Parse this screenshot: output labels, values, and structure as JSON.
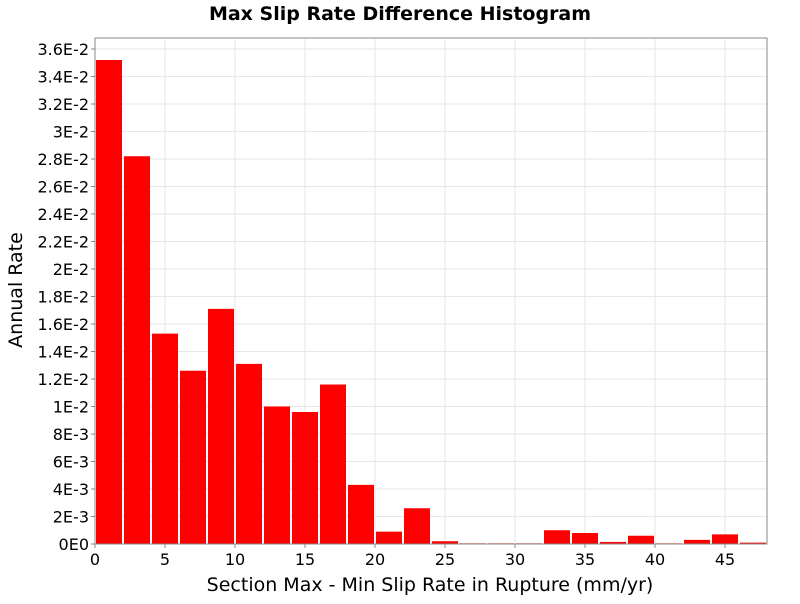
{
  "chart_data": {
    "type": "bar",
    "title": "Max Slip Rate Difference Histogram",
    "xlabel": "Section Max - Min Slip Rate in Rupture (mm/yr)",
    "ylabel": "Annual Rate",
    "xlim": [
      0,
      48
    ],
    "ylim": [
      0,
      0.0368
    ],
    "xticks": [
      0,
      5,
      10,
      15,
      20,
      25,
      30,
      35,
      40,
      45
    ],
    "xtick_labels": [
      "0",
      "5",
      "10",
      "15",
      "20",
      "25",
      "30",
      "35",
      "40",
      "45"
    ],
    "yticks": [
      0,
      0.002,
      0.004,
      0.006,
      0.008,
      0.01,
      0.012,
      0.014,
      0.016,
      0.018,
      0.02,
      0.022,
      0.024,
      0.026,
      0.028,
      0.03,
      0.032,
      0.034,
      0.036
    ],
    "ytick_labels": [
      "0E0",
      "2E-3",
      "4E-3",
      "6E-3",
      "8E-3",
      "1E-2",
      "1.2E-2",
      "1.4E-2",
      "1.6E-2",
      "1.8E-2",
      "2E-2",
      "2.2E-2",
      "2.4E-2",
      "2.6E-2",
      "2.8E-2",
      "3E-2",
      "3.2E-2",
      "3.4E-2",
      "3.6E-2"
    ],
    "bin_width": 2,
    "bin_centers": [
      1,
      3,
      5,
      7,
      9,
      11,
      13,
      15,
      17,
      19,
      21,
      23,
      25,
      27,
      29,
      31,
      33,
      35,
      37,
      39,
      41,
      43,
      45,
      47
    ],
    "values": [
      0.0352,
      0.0282,
      0.0153,
      0.0126,
      0.0171,
      0.0131,
      0.01,
      0.0096,
      0.0116,
      0.0043,
      0.0009,
      0.0026,
      0.0002,
      5e-05,
      5e-05,
      5e-05,
      0.001,
      0.0008,
      0.00015,
      0.0006,
      5e-05,
      0.0003,
      0.0007,
      0.0001
    ],
    "bar_color": "#ff0000",
    "grid": true,
    "legend": "none"
  }
}
